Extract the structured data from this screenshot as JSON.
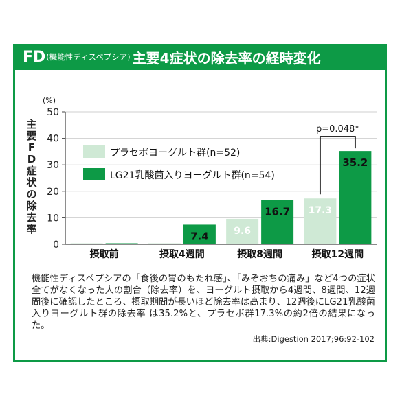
{
  "title": {
    "abbr": "FD",
    "paren": "(機能性ディスペプシア)",
    "main": "主要4症状の除去率の経時変化"
  },
  "chart_data": {
    "type": "bar",
    "ylabel": "主要FD症状の除去率",
    "unit": "(%)",
    "ylim": [
      0,
      50
    ],
    "yticks": [
      0,
      10,
      20,
      30,
      40,
      50
    ],
    "grid": true,
    "legend_position": "top-left",
    "categories": [
      "摂取前",
      "摂取4週間",
      "摂取8週間",
      "摂取12週間"
    ],
    "series": [
      {
        "name": "プラセボヨーグルト群(n=52)",
        "color": "#cfe9d5",
        "values": [
          0,
          0,
          9.6,
          17.3
        ],
        "labels": [
          "",
          "",
          "9.6",
          "17.3"
        ]
      },
      {
        "name": "LG21乳酸菌入りヨーグルト群(n=54)",
        "color": "#0d9a46",
        "values": [
          0,
          7.4,
          16.7,
          35.2
        ],
        "labels": [
          "",
          "7.4",
          "16.7",
          "35.2"
        ]
      }
    ],
    "annotation": {
      "text": "p=0.048*",
      "category_index": 3
    }
  },
  "description": "機能性ディスペプシアの「食後の胃のもたれ感」、「みぞおちの痛み」など4つの症状全てがなくなった人の割合（除去率）を、ヨーグルト摂取から4週間、8週間、12週間後に確認したところ、摂取期間が長いほど除去率は高まり、12週後にLG21乳酸菌入りヨーグルト群の除去率 は35.2%と、プラセボ群17.3%の約2倍の結果になった。",
  "source": "出典:Digestion 2017;96:92-102"
}
